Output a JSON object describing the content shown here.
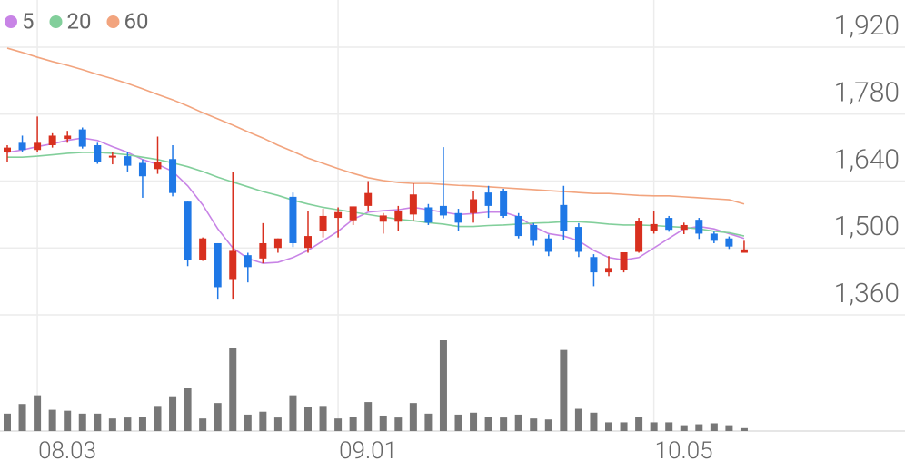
{
  "chart_data": {
    "type": "candlestick",
    "categories": [
      null,
      null,
      "08.03",
      null,
      null,
      null,
      null,
      null,
      null,
      null,
      null,
      null,
      null,
      null,
      null,
      null,
      null,
      null,
      null,
      null,
      null,
      null,
      "09.01",
      null,
      null,
      null,
      null,
      null,
      null,
      null,
      null,
      null,
      null,
      null,
      null,
      null,
      null,
      null,
      null,
      null,
      null,
      null,
      null,
      "10.05",
      null,
      null,
      null,
      null,
      null,
      null
    ],
    "open": [
      1700,
      1720,
      1705,
      1715,
      1728,
      1748,
      1715,
      1690,
      1692,
      1678,
      1665,
      1686,
      1597,
      1475,
      1510,
      1435,
      1485,
      1478,
      1500,
      1607,
      1500,
      1535,
      1563,
      1558,
      1588,
      1555,
      1555,
      1570,
      1585,
      1588,
      1573,
      1573,
      1616,
      1620,
      1567,
      1548,
      1520,
      1590,
      1544,
      1481,
      1449,
      1453,
      1492,
      1535,
      1563,
      1538,
      1559,
      1530,
      1520,
      1490
    ],
    "high": [
      1715,
      1735,
      1775,
      1740,
      1745,
      1752,
      1720,
      1700,
      1700,
      1685,
      1733,
      1715,
      1597,
      1522,
      1510,
      1658,
      1490,
      1552,
      1520,
      1616,
      1578,
      1582,
      1585,
      1587,
      1640,
      1573,
      1588,
      1635,
      1592,
      1711,
      1582,
      1620,
      1630,
      1624,
      1573,
      1552,
      1528,
      1630,
      1552,
      1487,
      1483,
      1491,
      1563,
      1578,
      1567,
      1553,
      1563,
      1534,
      1524,
      1515
    ],
    "low": [
      1680,
      1700,
      1700,
      1710,
      1720,
      1708,
      1676,
      1675,
      1660,
      1605,
      1655,
      1608,
      1462,
      1473,
      1392,
      1392,
      1428,
      1468,
      1490,
      1502,
      1490,
      1522,
      1522,
      1548,
      1578,
      1530,
      1535,
      1558,
      1548,
      1562,
      1535,
      1553,
      1563,
      1563,
      1520,
      1505,
      1483,
      1516,
      1481,
      1420,
      1441,
      1449,
      1490,
      1530,
      1534,
      1529,
      1519,
      1510,
      1498,
      1490
    ],
    "close": [
      1710,
      1705,
      1720,
      1735,
      1735,
      1712,
      1680,
      1693,
      1672,
      1650,
      1680,
      1615,
      1475,
      1520,
      1418,
      1494,
      1460,
      1510,
      1520,
      1510,
      1525,
      1567,
      1575,
      1587,
      1615,
      1568,
      1577,
      1612,
      1553,
      1568,
      1553,
      1602,
      1588,
      1567,
      1525,
      1515,
      1492,
      1535,
      1492,
      1449,
      1458,
      1491,
      1557,
      1550,
      1538,
      1548,
      1530,
      1515,
      1503,
      1497
    ],
    "up_color": "#d8301f",
    "down_color": "#1f78e6",
    "series": [
      {
        "name": "5",
        "color": "#c884e6",
        "values": [
          1700,
          1705,
          1712,
          1718,
          1725,
          1730,
          1725,
          1712,
          1700,
          1685,
          1675,
          1660,
          1630,
          1590,
          1540,
          1500,
          1478,
          1468,
          1470,
          1480,
          1495,
          1515,
          1535,
          1560,
          1575,
          1578,
          1580,
          1585,
          1580,
          1575,
          1570,
          1572,
          1575,
          1575,
          1565,
          1545,
          1530,
          1525,
          1515,
          1495,
          1480,
          1475,
          1480,
          1500,
          1520,
          1540,
          1545,
          1540,
          1530,
          1520
        ]
      },
      {
        "name": "20",
        "color": "#82cf9b",
        "values": [
          1690,
          1690,
          1692,
          1695,
          1698,
          1700,
          1700,
          1698,
          1695,
          1690,
          1685,
          1678,
          1670,
          1660,
          1648,
          1638,
          1628,
          1618,
          1610,
          1600,
          1592,
          1585,
          1580,
          1575,
          1570,
          1565,
          1560,
          1557,
          1553,
          1550,
          1545,
          1545,
          1547,
          1548,
          1550,
          1552,
          1553,
          1555,
          1555,
          1553,
          1550,
          1548,
          1548,
          1547,
          1545,
          1543,
          1540,
          1535,
          1532,
          1525
        ]
      },
      {
        "name": "60",
        "color": "#f2a47e",
        "values": [
          1918,
          1909,
          1899,
          1890,
          1882,
          1873,
          1863,
          1854,
          1844,
          1833,
          1821,
          1810,
          1797,
          1783,
          1770,
          1757,
          1743,
          1730,
          1715,
          1702,
          1688,
          1677,
          1666,
          1656,
          1647,
          1641,
          1637,
          1635,
          1635,
          1633,
          1631,
          1630,
          1628,
          1626,
          1624,
          1622,
          1620,
          1618,
          1616,
          1614,
          1614,
          1612,
          1610,
          1609,
          1609,
          1607,
          1605,
          1603,
          1601,
          1592
        ]
      }
    ],
    "volume": {
      "color": "#777777",
      "values": [
        18,
        28,
        37,
        22,
        21,
        18,
        18,
        13,
        14,
        15,
        26,
        36,
        45,
        13,
        29,
        86,
        17,
        20,
        14,
        37,
        25,
        26,
        13,
        15,
        30,
        16,
        14,
        29,
        18,
        94,
        17,
        19,
        15,
        14,
        17,
        13,
        12,
        84,
        23,
        19,
        9,
        9,
        15,
        9,
        9,
        6,
        7,
        8,
        6,
        3
      ]
    },
    "ylim": [
      1360,
      1920
    ],
    "yticks": [
      {
        "value": 1360,
        "label": "1,360"
      },
      {
        "value": 1500,
        "label": "1,500"
      },
      {
        "value": 1640,
        "label": "1,640"
      },
      {
        "value": 1780,
        "label": "1,780"
      },
      {
        "value": 1920,
        "label": "1,920"
      }
    ],
    "grid": true
  }
}
